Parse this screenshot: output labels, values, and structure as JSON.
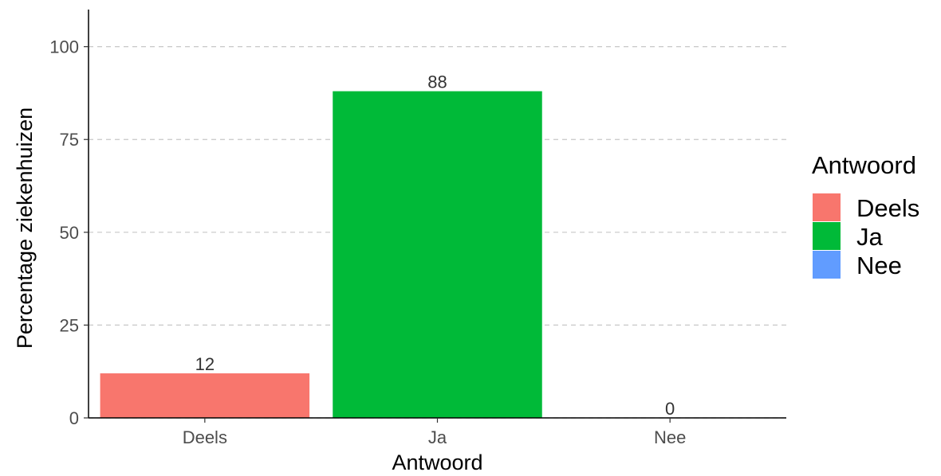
{
  "chart_data": {
    "type": "bar",
    "categories": [
      "Deels",
      "Ja",
      "Nee"
    ],
    "values": [
      12,
      88,
      0
    ],
    "data_labels": [
      "12",
      "88",
      "0"
    ],
    "colors": [
      "#F8766D",
      "#00BA38",
      "#619CFF"
    ],
    "title": "",
    "xlabel": "Antwoord",
    "ylabel": "Percentage ziekenhuizen",
    "ylim": [
      0,
      110
    ],
    "yticks": [
      0,
      25,
      50,
      75,
      100
    ],
    "ytick_labels": [
      "0",
      "25",
      "50",
      "75",
      "100"
    ],
    "grid": "horizontal-dashed",
    "legend": {
      "title": "Antwoord",
      "position": "right",
      "entries": [
        {
          "label": "Deels",
          "color": "#F8766D"
        },
        {
          "label": "Ja",
          "color": "#00BA38"
        },
        {
          "label": "Nee",
          "color": "#619CFF"
        }
      ]
    }
  }
}
